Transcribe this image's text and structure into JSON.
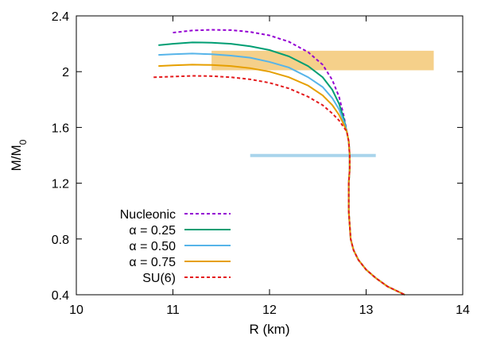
{
  "chart_data": {
    "type": "line",
    "xlabel": "R  (km)",
    "ylabel_main": "M/M",
    "ylabel_sub": "0",
    "xlim": [
      10,
      14
    ],
    "ylim": [
      0.4,
      2.4
    ],
    "xticks": [
      10,
      11,
      12,
      13,
      14
    ],
    "yticks": [
      0.4,
      0.8,
      1.2,
      1.6,
      2.0,
      2.4
    ],
    "xtick_labels": [
      "10",
      "11",
      "12",
      "13",
      "14"
    ],
    "ytick_labels": [
      "0.4",
      "0.8",
      "1.2",
      "1.6",
      "2",
      "2.4"
    ],
    "legend_position": "bottom-left",
    "bands": [
      {
        "x": [
          11.4,
          13.7
        ],
        "y": [
          2.01,
          2.15
        ],
        "color": "#f5d08a"
      },
      {
        "x": [
          11.8,
          13.1
        ],
        "y": [
          1.39,
          1.41
        ],
        "color": "#a8d4ec"
      }
    ],
    "series": [
      {
        "name": "Nucleonic",
        "color": "#9400d3",
        "dash": true,
        "x": [
          11.0,
          11.2,
          11.4,
          11.6,
          11.8,
          12.0,
          12.2,
          12.4,
          12.55,
          12.65,
          12.72,
          12.77,
          12.8
        ],
        "y": [
          2.28,
          2.295,
          2.3,
          2.298,
          2.285,
          2.26,
          2.215,
          2.14,
          2.05,
          1.94,
          1.82,
          1.68,
          1.57
        ]
      },
      {
        "name": "α = 0.25",
        "color": "#009e73",
        "dash": false,
        "x": [
          10.85,
          11.0,
          11.2,
          11.4,
          11.6,
          11.8,
          12.0,
          12.2,
          12.4,
          12.55,
          12.65,
          12.72,
          12.77,
          12.8
        ],
        "y": [
          2.19,
          2.2,
          2.21,
          2.208,
          2.2,
          2.182,
          2.155,
          2.11,
          2.04,
          1.96,
          1.87,
          1.77,
          1.66,
          1.57
        ]
      },
      {
        "name": "α = 0.50",
        "color": "#56b4e9",
        "dash": false,
        "x": [
          10.85,
          11.0,
          11.2,
          11.4,
          11.6,
          11.8,
          12.0,
          12.2,
          12.4,
          12.55,
          12.65,
          12.72,
          12.77,
          12.8
        ],
        "y": [
          2.12,
          2.125,
          2.13,
          2.125,
          2.115,
          2.1,
          2.07,
          2.03,
          1.96,
          1.89,
          1.81,
          1.73,
          1.64,
          1.57
        ]
      },
      {
        "name": "α = 0.75",
        "color": "#e69f00",
        "dash": false,
        "x": [
          10.85,
          11.0,
          11.2,
          11.4,
          11.6,
          11.8,
          12.0,
          12.2,
          12.4,
          12.55,
          12.65,
          12.72,
          12.77,
          12.8
        ],
        "y": [
          2.04,
          2.045,
          2.05,
          2.048,
          2.04,
          2.025,
          2.0,
          1.96,
          1.9,
          1.83,
          1.76,
          1.69,
          1.62,
          1.57
        ]
      },
      {
        "name": "SU(6)",
        "color": "#e41a1c",
        "dash": true,
        "x": [
          10.8,
          11.0,
          11.2,
          11.4,
          11.6,
          11.8,
          12.0,
          12.2,
          12.4,
          12.55,
          12.65,
          12.72,
          12.77,
          12.8
        ],
        "y": [
          1.96,
          1.965,
          1.97,
          1.968,
          1.96,
          1.945,
          1.92,
          1.88,
          1.82,
          1.76,
          1.7,
          1.65,
          1.6,
          1.57
        ]
      }
    ],
    "common_branch": {
      "x": [
        12.8,
        12.82,
        12.83,
        12.83,
        12.82,
        12.82,
        12.82,
        12.83,
        12.84,
        12.87,
        12.92,
        13.0,
        13.1,
        13.22,
        13.4
      ],
      "y": [
        1.57,
        1.5,
        1.4,
        1.3,
        1.2,
        1.1,
        1.0,
        0.9,
        0.8,
        0.72,
        0.65,
        0.58,
        0.52,
        0.46,
        0.4
      ]
    }
  }
}
